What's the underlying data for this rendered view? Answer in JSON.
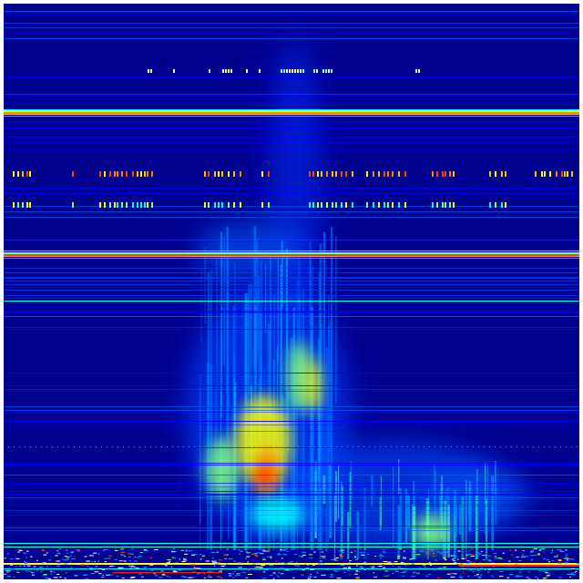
{
  "image": {
    "kind": "spectrogram-heatmap",
    "colormap": [
      "#00007f",
      "#0000ff",
      "#00a0ff",
      "#00ffff",
      "#80ff80",
      "#ffff00",
      "#ff8000",
      "#ff0000",
      "#7f0000"
    ],
    "background_color": "#00008f",
    "border_color": "#ffffff"
  }
}
